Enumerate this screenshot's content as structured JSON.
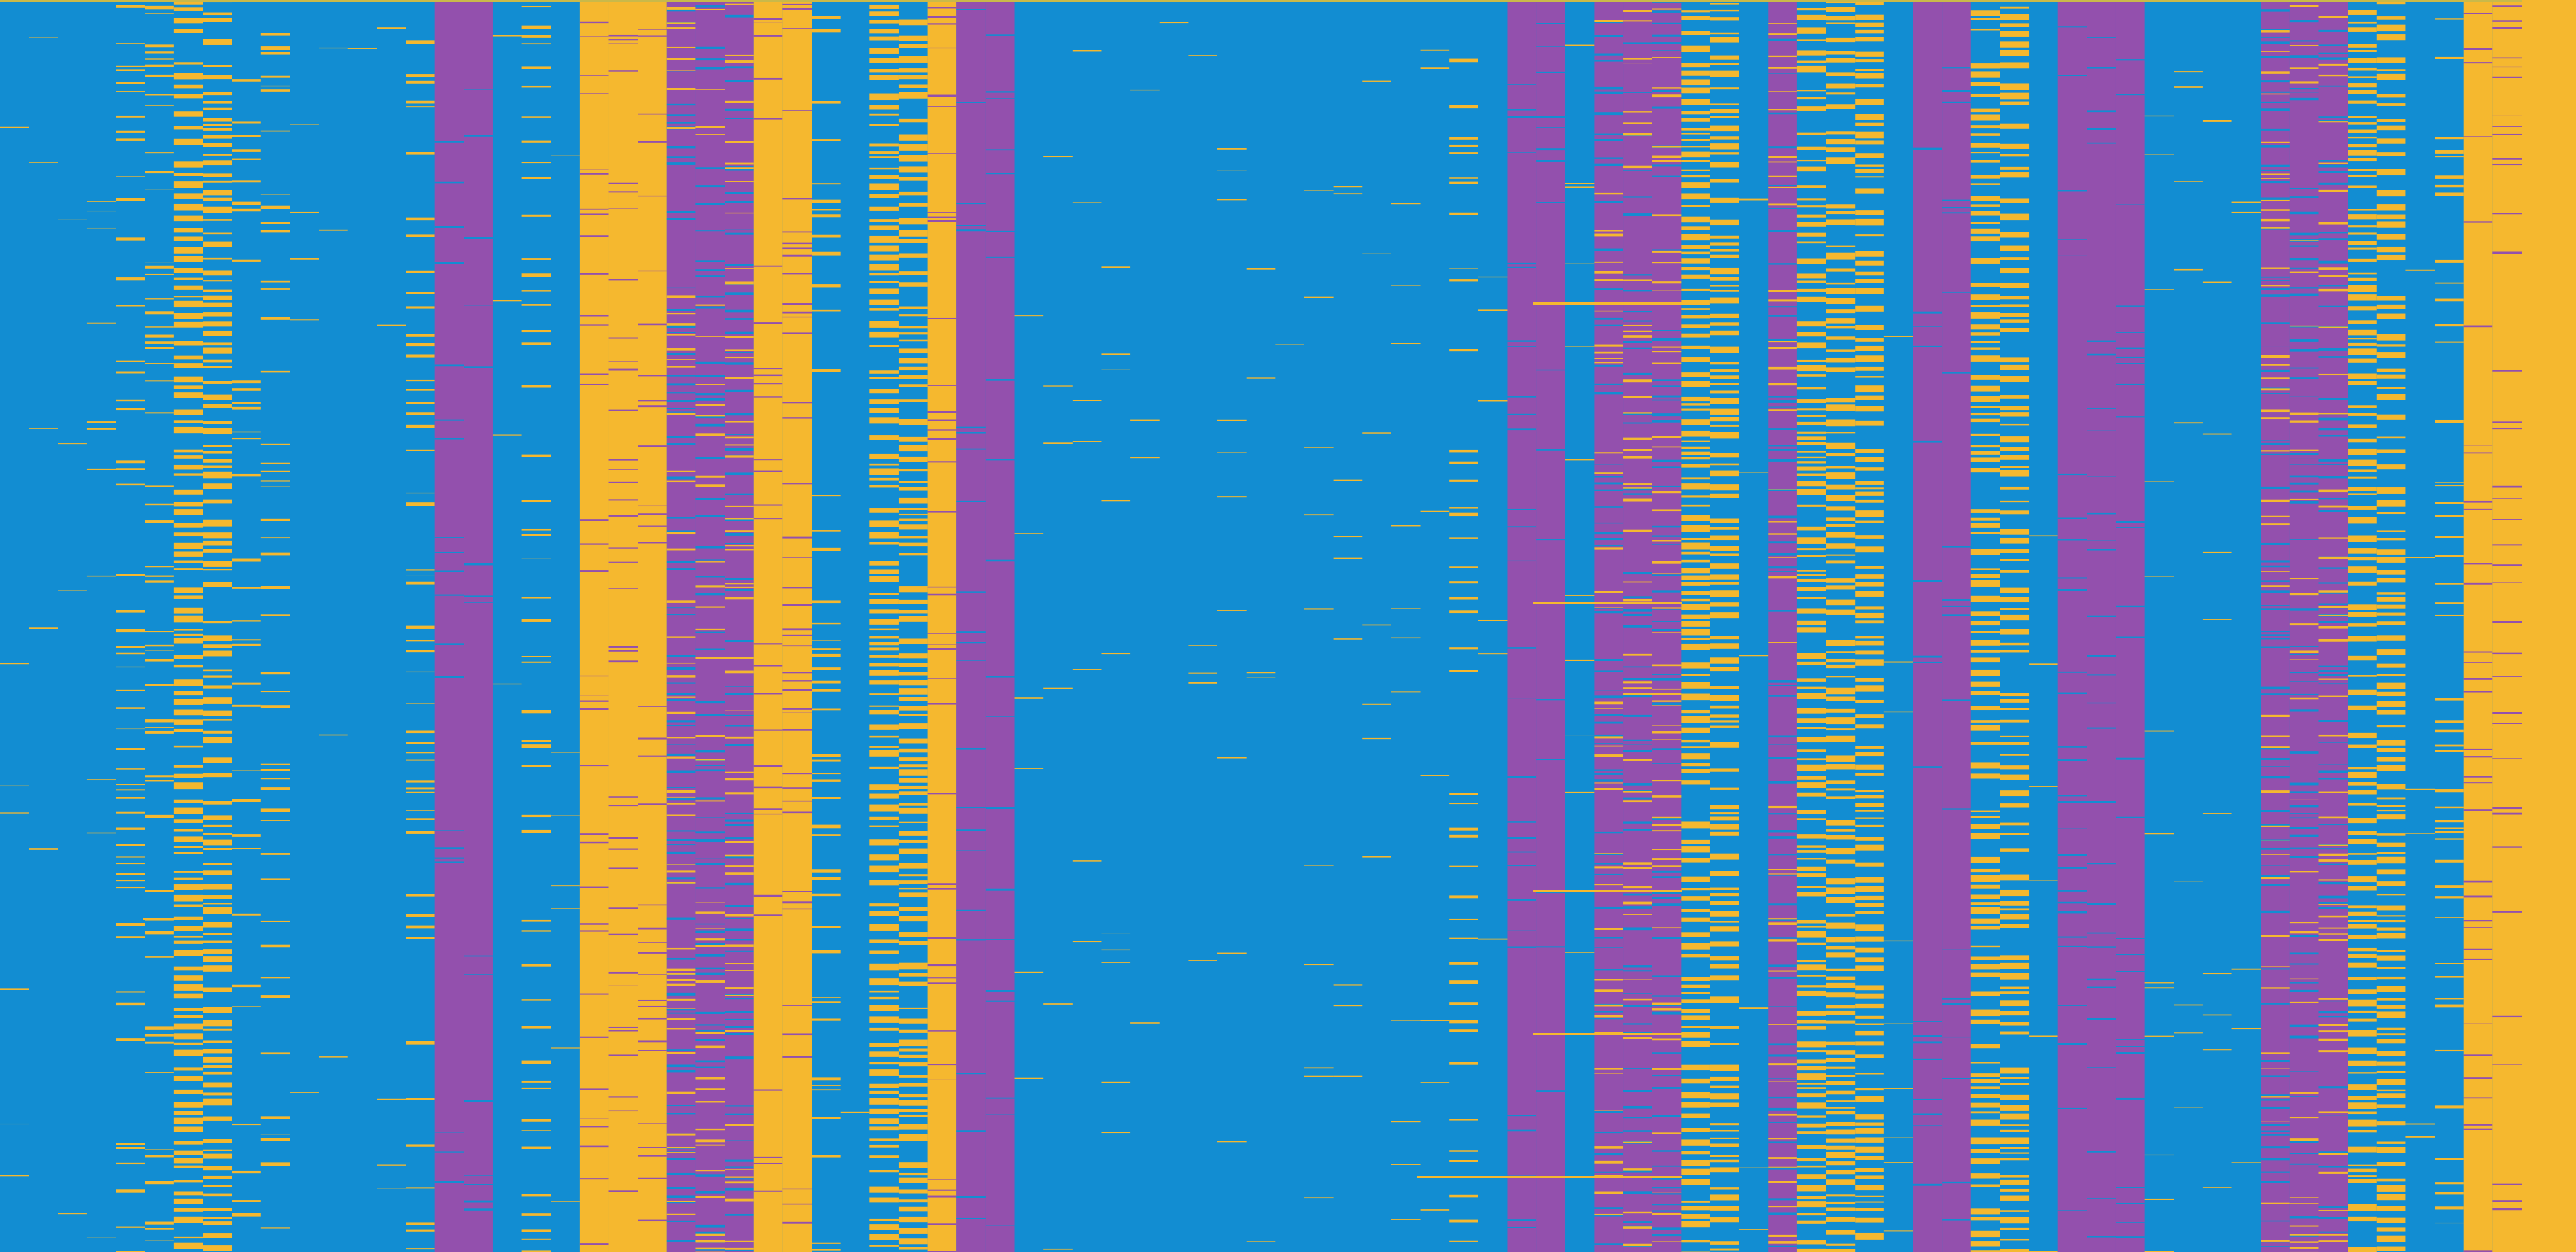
{
  "chart_data": {
    "type": "heatmap",
    "title": "",
    "xlabel": "",
    "ylabel": "",
    "n_columns": 87,
    "n_rows": 120,
    "grid": false,
    "legend": "none",
    "colors": {
      "background": "#128dd2",
      "gold": "#f5b82f",
      "purple": "#9350ad",
      "top_rule": "#c9b94a"
    },
    "column_classes": [
      "blue",
      "blue",
      "blue",
      "blue",
      "gold-sparse",
      "gold-sparse",
      "gold-dense",
      "gold-dense",
      "gold-sparse",
      "gold-sparse",
      "blue",
      "blue",
      "blue",
      "blue",
      "gold-sparse",
      "purple",
      "purple",
      "blue",
      "gold-sparse",
      "blue",
      "gold-solid",
      "gold-solid",
      "gold-solid",
      "purple-mixed",
      "purple-mixed",
      "purple-mixed",
      "gold-solid",
      "gold-solid",
      "gold-sparse",
      "blue",
      "gold-dense",
      "gold-dense",
      "gold-solid",
      "purple",
      "purple",
      "blue",
      "blue",
      "blue",
      "blue",
      "blue",
      "blue",
      "blue",
      "blue",
      "blue",
      "blue",
      "blue",
      "blue",
      "blue",
      "blue",
      "blue",
      "gold-sparse",
      "blue",
      "purple",
      "purple",
      "blue",
      "purple-mixed",
      "purple-mixed",
      "purple-mixed",
      "gold-dense",
      "gold-dense",
      "blue",
      "purple-mixed",
      "gold-dense",
      "gold-dense",
      "gold-dense",
      "blue",
      "purple",
      "purple",
      "gold-dense",
      "gold-dense",
      "blue",
      "purple",
      "purple",
      "purple",
      "blue",
      "blue",
      "blue",
      "blue",
      "purple-mixed",
      "purple-mixed",
      "purple-mixed",
      "gold-dense",
      "gold-dense",
      "blue",
      "gold-sparse",
      "gold-solid",
      "gold-solid"
    ],
    "right_edge_band": "gold-solid"
  }
}
